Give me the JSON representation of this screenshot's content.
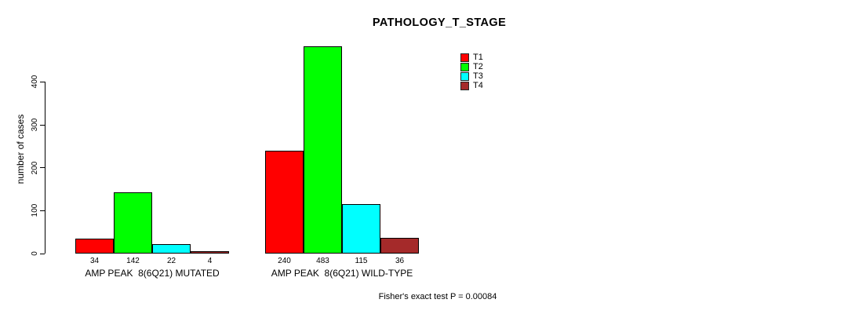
{
  "chart_data": {
    "type": "bar",
    "title": "PATHOLOGY_T_STAGE",
    "ylabel": "number of cases",
    "xlabel": "",
    "categories": [
      "AMP PEAK  8(6Q21) MUTATED",
      "AMP PEAK  8(6Q21) WILD-TYPE"
    ],
    "series": [
      {
        "name": "T1",
        "color": "#FF0000",
        "values": [
          34,
          240
        ]
      },
      {
        "name": "T2",
        "color": "#00FF00",
        "values": [
          142,
          483
        ]
      },
      {
        "name": "T3",
        "color": "#00FFFF",
        "values": [
          22,
          115
        ]
      },
      {
        "name": "T4",
        "color": "#A52A2A",
        "values": [
          4,
          36
        ]
      }
    ],
    "yticks": [
      0,
      100,
      200,
      300,
      400
    ],
    "ylim": [
      0,
      483
    ],
    "bar_value_labels": true,
    "grid": false,
    "legend_position": "top-right",
    "footnote": "Fisher's exact test P = 0.00084"
  }
}
